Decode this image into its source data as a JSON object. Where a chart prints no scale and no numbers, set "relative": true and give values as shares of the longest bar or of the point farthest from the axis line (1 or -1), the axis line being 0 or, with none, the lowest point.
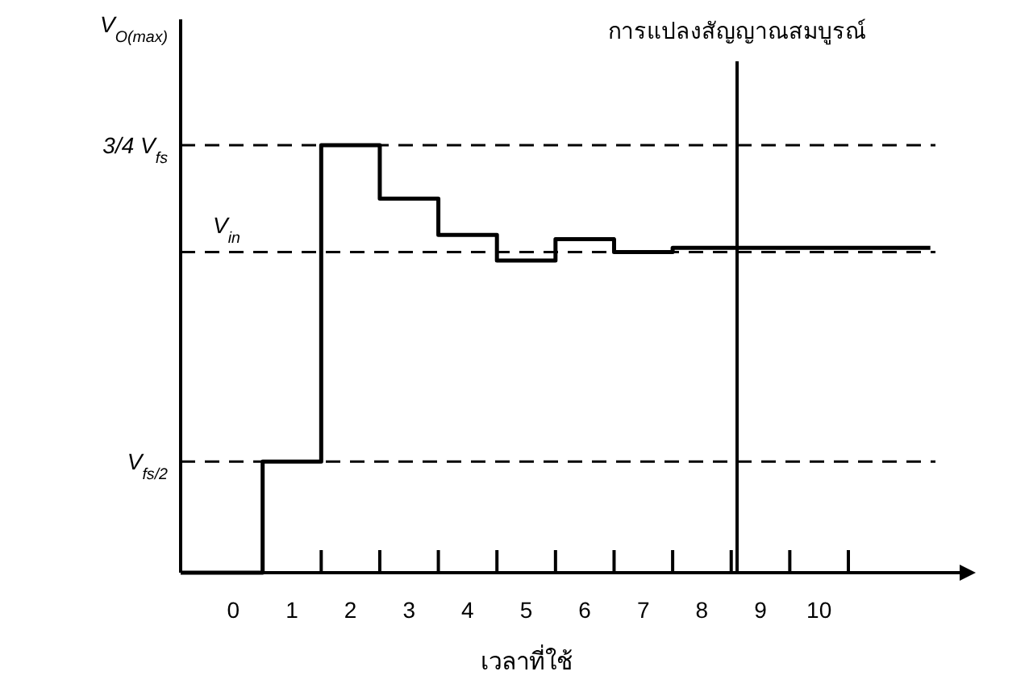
{
  "chart_data": {
    "type": "step",
    "relative": true,
    "ylabel": "V$_{O(max)}$",
    "xlabel": "เวลาที่ใช้",
    "xlim": [
      -0.9,
      12.4
    ],
    "xticks": [
      0,
      1,
      2,
      3,
      4,
      5,
      6,
      7,
      8,
      9,
      10,
      {
        "value": 0.5,
        "label": null
      },
      {
        "value": 1.5,
        "label": null
      },
      {
        "value": 2.5,
        "label": null
      },
      {
        "value": 3.5,
        "label": null
      },
      {
        "value": 4.5,
        "label": null
      },
      {
        "value": 5.5,
        "label": null
      },
      {
        "value": 6.5,
        "label": null
      },
      {
        "value": 7.5,
        "label": null
      },
      {
        "value": 8.5,
        "label": null
      },
      {
        "value": 9.5,
        "label": null
      },
      {
        "value": 10.5,
        "label": null
      }
    ],
    "series": [
      {
        "color": "#000000",
        "x": [
          -0.9,
          0.5,
          1.5,
          2.5,
          3.5,
          4.5,
          5.5,
          6.5,
          7.5,
          11.9
        ],
        "values": [
          0,
          0.26,
          1,
          0.875,
          0.79,
          0.73,
          0.78,
          0.75,
          0.76,
          0.76
        ]
      }
    ],
    "ref_lines": [
      {
        "axis": "y",
        "value": 1,
        "label": "3/4 V$_{fs}$",
        "line_style": "dashed",
        "color": "#000000"
      },
      {
        "axis": "y",
        "value": 0.75,
        "label": "V$_{in}$",
        "line_style": "dashed",
        "color": "#000000"
      },
      {
        "axis": "y",
        "value": 0.26,
        "label": "V$_{fs/2}$",
        "line_style": "dashed",
        "color": "#000000"
      },
      {
        "axis": "x",
        "value": 8.6,
        "label": "การแปลงสัญญาณสมบูรณ์",
        "line_style": "solid",
        "color": "#000000"
      }
    ]
  }
}
